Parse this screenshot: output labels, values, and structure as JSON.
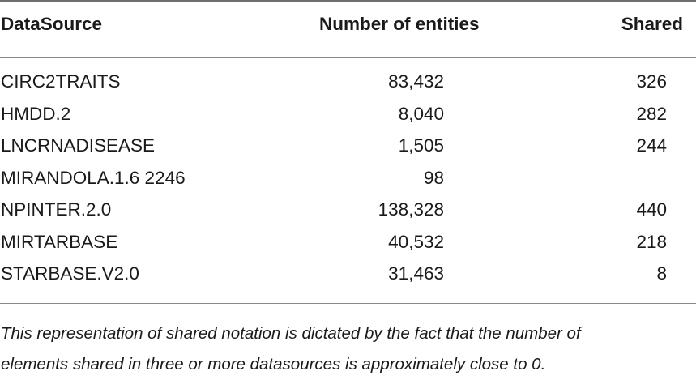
{
  "table": {
    "headers": {
      "source": "DataSource",
      "entities": "Number of entities",
      "shared": "Shared"
    },
    "rows": [
      {
        "source": "CIRC2TRAITS",
        "entities": "83,432",
        "shared": "326"
      },
      {
        "source": "HMDD.2",
        "entities": "8,040",
        "shared": "282"
      },
      {
        "source": "LNCRNADISEASE",
        "entities": "1,505",
        "shared": "244"
      },
      {
        "source": "MIRANDOLA.1.6 2246",
        "entities": "98",
        "shared": ""
      },
      {
        "source": "NPINTER.2.0",
        "entities": "138,328",
        "shared": "440"
      },
      {
        "source": "MIRTARBASE",
        "entities": "40,532",
        "shared": "218"
      },
      {
        "source": "STARBASE.V2.0",
        "entities": "31,463",
        "shared": "8"
      }
    ]
  },
  "footnote": {
    "line1": "This representation of shared notation is dictated by the fact that the number of",
    "line2": "elements shared in three or more datasources is approximately close to 0."
  }
}
